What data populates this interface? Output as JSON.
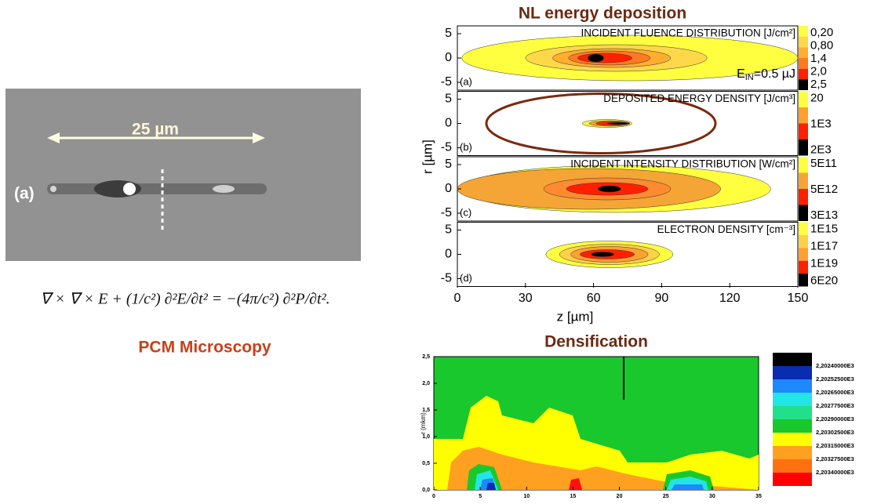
{
  "microscopy": {
    "scale_label": "25 µm",
    "panel_label": "(a)",
    "equation": "∇ × ∇ × E + (1/c²) ∂²E/∂t² = −(4π/c²) ∂²P/∂t².",
    "caption": "PCM Microscopy"
  },
  "deposition_figure": {
    "title": "NL energy deposition",
    "y_label": "r [µm]",
    "x_label": "z [µm]",
    "x_ticks": [
      "0",
      "30",
      "60",
      "90",
      "120",
      "150"
    ],
    "y_ticks": [
      "5",
      "0",
      "-5"
    ],
    "panels": [
      {
        "label": "(a)",
        "title": "INCIDENT FLUENCE DISTRIBUTION [J/cm²]",
        "legend": [
          "0,20",
          "0,80",
          "1,4",
          "2,0",
          "2,5"
        ],
        "energy_symbol": "E",
        "energy_subscript": "IN",
        "energy_value": "=0.5 µJ"
      },
      {
        "label": "(b)",
        "title": "DEPOSITED ENERGY DENSITY [J/cm³]",
        "legend": [
          "20",
          "1E3",
          "2E3"
        ]
      },
      {
        "label": "(c)",
        "title": "INCIDENT INTENSITY DISTRIBUTION [W/cm²]",
        "legend": [
          "5E11",
          "5E12",
          "3E13"
        ]
      },
      {
        "label": "(d)",
        "title": "ELECTRON DENSITY [cm⁻³]",
        "legend": [
          "1E15",
          "1E17",
          "1E19",
          "6E20"
        ]
      }
    ]
  },
  "densification_figure": {
    "title": "Densification",
    "y_label": "r (mkm)",
    "y_ticks": [
      "2,5",
      "2,0",
      "1,5",
      "1,0",
      "0,5",
      "0,0"
    ],
    "x_ticks": [
      "0",
      "5",
      "10",
      "15",
      "20",
      "25",
      "30",
      "35"
    ],
    "legend": [
      "2,20240000E3",
      "2,20252500E3",
      "2,20265000E3",
      "2,20277500E3",
      "2,20290000E3",
      "2,20302500E3",
      "2,20315000E3",
      "2,20327500E3",
      "2,20340000E3"
    ]
  }
}
